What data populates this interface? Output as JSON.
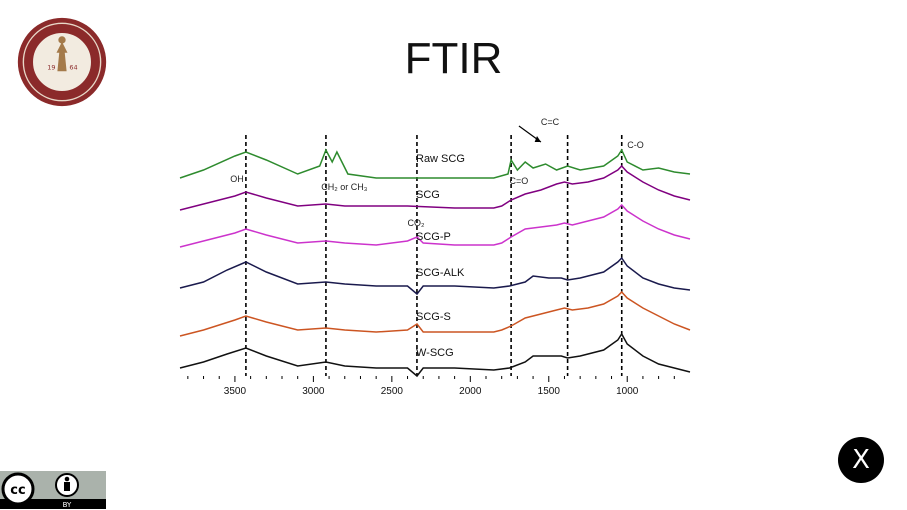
{
  "title": "FTIR",
  "close_label": "X",
  "badge": {
    "cc_text": "cc",
    "by_text": "BY"
  },
  "seal": {
    "year_left": "19",
    "year_right": "64"
  },
  "chart_data": {
    "type": "line",
    "title": "",
    "xlabel": "",
    "ylabel": "",
    "x_axis_reversed": true,
    "xlim": [
      3850,
      600
    ],
    "xticks": [
      3500,
      3000,
      2500,
      2000,
      1500,
      1000
    ],
    "xtick_labels": [
      "3500",
      "3000",
      "2500",
      "2000",
      "1500",
      "1000"
    ],
    "grid": false,
    "legend": "none",
    "reference_lines": [
      3430,
      2920,
      2340,
      1740,
      1380,
      1035
    ],
    "annotations": [
      {
        "text": "C=C",
        "x": 1550
      },
      {
        "text": "C-O",
        "x": 1000
      },
      {
        "text": "OH",
        "x": 3530
      },
      {
        "text": "CH₂ or CH₃",
        "x": 2950
      },
      {
        "text": "CO₂",
        "x": 2400
      },
      {
        "text": "C=O",
        "x": 1750
      }
    ],
    "series": [
      {
        "name": "Raw SCG",
        "color": "#2e8b2e",
        "points": [
          [
            3850,
            0.86
          ],
          [
            3700,
            0.9
          ],
          [
            3500,
            0.97
          ],
          [
            3430,
            0.99
          ],
          [
            3300,
            0.95
          ],
          [
            3100,
            0.88
          ],
          [
            2960,
            0.92
          ],
          [
            2920,
            1.0
          ],
          [
            2880,
            0.94
          ],
          [
            2850,
            0.99
          ],
          [
            2780,
            0.88
          ],
          [
            2600,
            0.86
          ],
          [
            2400,
            0.86
          ],
          [
            2100,
            0.86
          ],
          [
            1850,
            0.86
          ],
          [
            1760,
            0.88
          ],
          [
            1740,
            0.95
          ],
          [
            1700,
            0.9
          ],
          [
            1650,
            0.94
          ],
          [
            1600,
            0.91
          ],
          [
            1520,
            0.93
          ],
          [
            1450,
            0.9
          ],
          [
            1380,
            0.92
          ],
          [
            1300,
            0.9
          ],
          [
            1150,
            0.92
          ],
          [
            1060,
            0.97
          ],
          [
            1035,
            1.0
          ],
          [
            1000,
            0.94
          ],
          [
            900,
            0.9
          ],
          [
            800,
            0.91
          ],
          [
            700,
            0.89
          ],
          [
            600,
            0.88
          ]
        ]
      },
      {
        "name": "SCG",
        "color": "#800080",
        "points": [
          [
            3850,
            0.9
          ],
          [
            3700,
            0.93
          ],
          [
            3500,
            0.97
          ],
          [
            3430,
            0.99
          ],
          [
            3300,
            0.96
          ],
          [
            3100,
            0.92
          ],
          [
            2920,
            0.93
          ],
          [
            2800,
            0.92
          ],
          [
            2600,
            0.92
          ],
          [
            2400,
            0.92
          ],
          [
            2100,
            0.91
          ],
          [
            1850,
            0.91
          ],
          [
            1800,
            0.92
          ],
          [
            1740,
            0.95
          ],
          [
            1650,
            0.98
          ],
          [
            1550,
            1.0
          ],
          [
            1450,
            1.03
          ],
          [
            1400,
            1.04
          ],
          [
            1350,
            1.03
          ],
          [
            1250,
            1.04
          ],
          [
            1150,
            1.06
          ],
          [
            1060,
            1.1
          ],
          [
            1035,
            1.12
          ],
          [
            1000,
            1.09
          ],
          [
            900,
            1.04
          ],
          [
            800,
            1.0
          ],
          [
            700,
            0.97
          ],
          [
            600,
            0.95
          ]
        ]
      },
      {
        "name": "SCG-P",
        "color": "#cc33cc",
        "points": [
          [
            3850,
            0.89
          ],
          [
            3700,
            0.92
          ],
          [
            3500,
            0.96
          ],
          [
            3430,
            0.98
          ],
          [
            3300,
            0.95
          ],
          [
            3100,
            0.91
          ],
          [
            2920,
            0.92
          ],
          [
            2800,
            0.91
          ],
          [
            2600,
            0.9
          ],
          [
            2400,
            0.92
          ],
          [
            2340,
            0.94
          ],
          [
            2300,
            0.91
          ],
          [
            2100,
            0.9
          ],
          [
            1850,
            0.9
          ],
          [
            1800,
            0.91
          ],
          [
            1740,
            0.94
          ],
          [
            1650,
            0.98
          ],
          [
            1550,
            0.99
          ],
          [
            1450,
            1.0
          ],
          [
            1400,
            1.01
          ],
          [
            1350,
            1.0
          ],
          [
            1250,
            1.02
          ],
          [
            1150,
            1.04
          ],
          [
            1060,
            1.08
          ],
          [
            1035,
            1.1
          ],
          [
            1000,
            1.07
          ],
          [
            900,
            1.02
          ],
          [
            800,
            0.98
          ],
          [
            700,
            0.95
          ],
          [
            600,
            0.93
          ]
        ]
      },
      {
        "name": "SCG-ALK",
        "color": "#1a1a4d",
        "points": [
          [
            3850,
            0.87
          ],
          [
            3700,
            0.9
          ],
          [
            3550,
            0.96
          ],
          [
            3430,
            1.0
          ],
          [
            3300,
            0.95
          ],
          [
            3100,
            0.89
          ],
          [
            2920,
            0.9
          ],
          [
            2800,
            0.89
          ],
          [
            2600,
            0.88
          ],
          [
            2400,
            0.88
          ],
          [
            2340,
            0.84
          ],
          [
            2300,
            0.88
          ],
          [
            2100,
            0.88
          ],
          [
            1850,
            0.87
          ],
          [
            1750,
            0.88
          ],
          [
            1650,
            0.9
          ],
          [
            1600,
            0.93
          ],
          [
            1500,
            0.92
          ],
          [
            1420,
            0.92
          ],
          [
            1380,
            0.91
          ],
          [
            1300,
            0.92
          ],
          [
            1150,
            0.95
          ],
          [
            1060,
            1.0
          ],
          [
            1035,
            1.02
          ],
          [
            1000,
            0.98
          ],
          [
            900,
            0.92
          ],
          [
            800,
            0.89
          ],
          [
            700,
            0.87
          ],
          [
            600,
            0.86
          ]
        ]
      },
      {
        "name": "SCG-S",
        "color": "#cc5522",
        "points": [
          [
            3850,
            0.88
          ],
          [
            3700,
            0.91
          ],
          [
            3500,
            0.96
          ],
          [
            3430,
            0.98
          ],
          [
            3300,
            0.95
          ],
          [
            3100,
            0.91
          ],
          [
            2920,
            0.92
          ],
          [
            2800,
            0.91
          ],
          [
            2600,
            0.9
          ],
          [
            2400,
            0.91
          ],
          [
            2340,
            0.94
          ],
          [
            2300,
            0.9
          ],
          [
            2100,
            0.9
          ],
          [
            1850,
            0.9
          ],
          [
            1800,
            0.91
          ],
          [
            1740,
            0.93
          ],
          [
            1650,
            0.97
          ],
          [
            1550,
            0.99
          ],
          [
            1450,
            1.01
          ],
          [
            1400,
            1.02
          ],
          [
            1350,
            1.01
          ],
          [
            1250,
            1.02
          ],
          [
            1150,
            1.04
          ],
          [
            1060,
            1.08
          ],
          [
            1035,
            1.1
          ],
          [
            1000,
            1.07
          ],
          [
            900,
            1.02
          ],
          [
            800,
            0.98
          ],
          [
            700,
            0.94
          ],
          [
            600,
            0.91
          ]
        ]
      },
      {
        "name": "W-SCG",
        "color": "#111111",
        "points": [
          [
            3850,
            0.9
          ],
          [
            3700,
            0.93
          ],
          [
            3550,
            0.97
          ],
          [
            3430,
            1.0
          ],
          [
            3300,
            0.96
          ],
          [
            3100,
            0.91
          ],
          [
            2920,
            0.93
          ],
          [
            2800,
            0.91
          ],
          [
            2600,
            0.9
          ],
          [
            2400,
            0.9
          ],
          [
            2340,
            0.86
          ],
          [
            2300,
            0.9
          ],
          [
            2100,
            0.9
          ],
          [
            1850,
            0.89
          ],
          [
            1750,
            0.9
          ],
          [
            1650,
            0.93
          ],
          [
            1600,
            0.96
          ],
          [
            1500,
            0.96
          ],
          [
            1420,
            0.96
          ],
          [
            1380,
            0.95
          ],
          [
            1300,
            0.96
          ],
          [
            1150,
            0.99
          ],
          [
            1060,
            1.04
          ],
          [
            1035,
            1.07
          ],
          [
            1000,
            1.02
          ],
          [
            900,
            0.96
          ],
          [
            800,
            0.92
          ],
          [
            700,
            0.9
          ],
          [
            600,
            0.88
          ]
        ]
      }
    ]
  }
}
